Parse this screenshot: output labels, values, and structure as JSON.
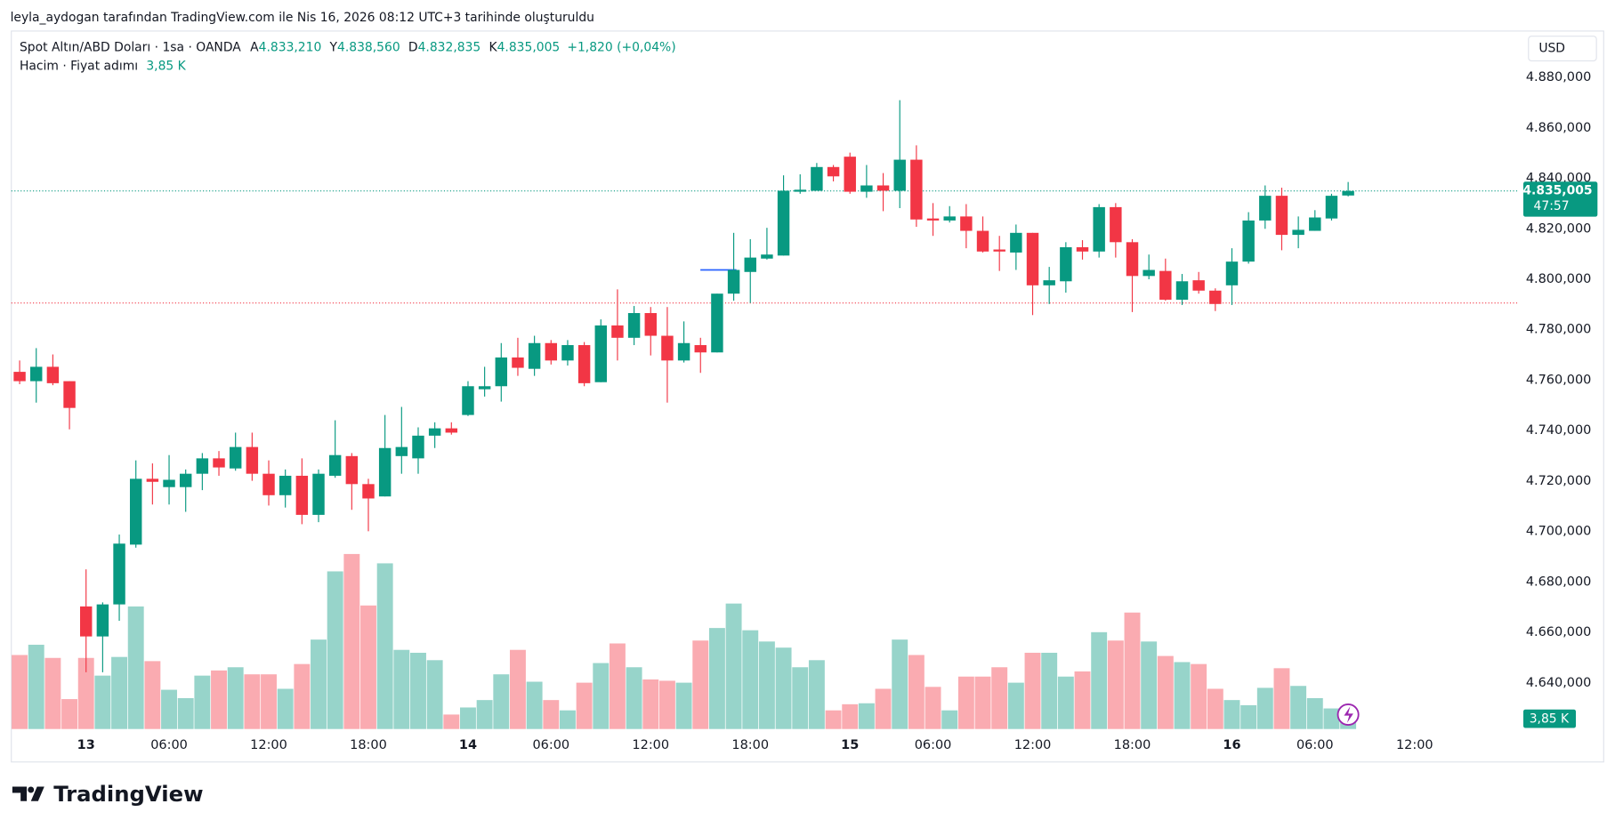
{
  "header": "leyla_aydogan tarafından TradingView.com ile Nis 16, 2026 08:12 UTC+3 tarihinde oluşturuldu",
  "footer": "TradingView",
  "chart_data": {
    "type": "candlestick",
    "currency": "USD",
    "up_color": "#089981",
    "down_color": "#f23645",
    "grid": false,
    "series": [
      {
        "name": "Spot Altın/ABD Doları · 1sa · OANDA",
        "ohlc_labels": [
          {
            "key": "A",
            "value": "4.833,210"
          },
          {
            "key": "Y",
            "value": "4.838,560"
          },
          {
            "key": "D",
            "value": "4.832,835"
          },
          {
            "key": "K",
            "value": "4.835,005"
          }
        ],
        "change_label": "+1,820 (+0,04%)",
        "countdown": "47:57",
        "open": [
          4763.3,
          4759.6,
          4765.3,
          4759.6,
          4670.3,
          4658.4,
          4671.1,
          4694.8,
          4720.9,
          4717.6,
          4717.6,
          4722.9,
          4729.0,
          4725.0,
          4733.5,
          4722.9,
          4714.4,
          4722.1,
          4706.6,
          4722.1,
          4729.9,
          4718.8,
          4713.9,
          4729.9,
          4729.0,
          4738.0,
          4740.9,
          4746.2,
          4756.4,
          4757.6,
          4769.0,
          4764.5,
          4774.7,
          4767.8,
          4773.9,
          4759.2,
          4781.7,
          4776.8,
          4786.6,
          4777.6,
          4767.8,
          4773.9,
          4771.0,
          4794.3,
          4802.9,
          4808.2,
          4809.4,
          4834.7,
          4835.1,
          4844.5,
          4848.6,
          4834.7,
          4837.2,
          4835.1,
          4847.4,
          4824.1,
          4823.3,
          4824.9,
          4819.2,
          4811.8,
          4810.6,
          4818.4,
          4797.6,
          4799.2,
          4812.7,
          4811.0,
          4828.6,
          4814.7,
          4801.3,
          4803.3,
          4791.9,
          4799.6,
          4795.5,
          4797.6,
          4807.0,
          4823.3,
          4833.1,
          4817.6,
          4819.2,
          4824.1,
          4833.21
        ],
        "high": [
          4767.8,
          4772.7,
          4770.2,
          4759.6,
          4685.0,
          4671.9,
          4698.8,
          4728.2,
          4727.0,
          4730.3,
          4724.6,
          4731.1,
          4731.9,
          4739.2,
          4739.2,
          4728.2,
          4724.6,
          4729.0,
          4724.6,
          4744.1,
          4731.1,
          4720.9,
          4746.2,
          4749.4,
          4741.3,
          4743.3,
          4743.3,
          4759.6,
          4765.3,
          4774.7,
          4776.8,
          4777.6,
          4775.9,
          4775.9,
          4775.1,
          4784.1,
          4796.0,
          4789.4,
          4789.0,
          4789.0,
          4783.3,
          4776.8,
          4794.3,
          4818.4,
          4815.9,
          4820.4,
          4841.2,
          4841.6,
          4846.1,
          4845.3,
          4850.2,
          4845.3,
          4842.1,
          4871.0,
          4853.1,
          4830.2,
          4829.0,
          4829.8,
          4824.9,
          4817.2,
          4821.7,
          4818.4,
          4804.9,
          4814.7,
          4815.5,
          4829.8,
          4830.2,
          4815.9,
          4809.8,
          4808.2,
          4802.1,
          4802.9,
          4796.4,
          4812.3,
          4826.6,
          4837.2,
          4836.3,
          4824.9,
          4827.4,
          4833.9,
          4838.56
        ],
        "low": [
          4758.4,
          4751.1,
          4758.0,
          4740.5,
          4644.2,
          4644.2,
          4664.6,
          4693.6,
          4710.7,
          4710.7,
          4707.8,
          4716.4,
          4722.1,
          4724.1,
          4720.1,
          4710.3,
          4709.5,
          4702.9,
          4703.7,
          4721.3,
          4708.6,
          4700.1,
          4713.9,
          4722.9,
          4722.9,
          4733.1,
          4738.4,
          4745.8,
          4753.5,
          4751.5,
          4761.7,
          4761.7,
          4766.2,
          4765.8,
          4757.6,
          4759.2,
          4767.8,
          4773.9,
          4769.8,
          4751.1,
          4767.0,
          4762.9,
          4771.0,
          4791.5,
          4790.6,
          4807.8,
          4809.4,
          4833.9,
          4835.1,
          4838.8,
          4833.9,
          4832.3,
          4827.0,
          4828.2,
          4820.8,
          4817.2,
          4822.5,
          4812.3,
          4810.6,
          4803.3,
          4803.7,
          4785.8,
          4790.2,
          4794.7,
          4807.8,
          4808.6,
          4808.6,
          4787.0,
          4800.0,
          4791.5,
          4789.8,
          4794.3,
          4787.4,
          4789.8,
          4806.2,
          4820.0,
          4811.5,
          4812.3,
          4819.2,
          4823.3,
          4832.835
        ],
        "close": [
          4759.6,
          4765.3,
          4758.8,
          4749.0,
          4658.4,
          4671.1,
          4695.2,
          4720.9,
          4719.7,
          4720.5,
          4722.9,
          4729.0,
          4725.4,
          4733.5,
          4722.9,
          4714.4,
          4722.1,
          4706.6,
          4722.9,
          4730.3,
          4718.8,
          4713.1,
          4733.1,
          4733.5,
          4738.0,
          4740.9,
          4739.2,
          4757.6,
          4757.6,
          4769.0,
          4764.9,
          4774.7,
          4767.8,
          4773.9,
          4758.8,
          4781.7,
          4776.8,
          4786.6,
          4777.6,
          4767.8,
          4774.7,
          4771.0,
          4794.3,
          4803.7,
          4808.6,
          4809.8,
          4835.1,
          4835.5,
          4844.5,
          4840.8,
          4834.7,
          4837.2,
          4835.1,
          4847.4,
          4823.7,
          4823.3,
          4824.9,
          4819.2,
          4811.0,
          4811.0,
          4818.4,
          4797.6,
          4799.6,
          4812.7,
          4811.0,
          4828.6,
          4814.7,
          4801.3,
          4803.7,
          4791.9,
          4799.2,
          4795.5,
          4790.2,
          4807.0,
          4823.3,
          4833.1,
          4817.6,
          4819.6,
          4824.5,
          4833.1,
          4835.005
        ]
      }
    ],
    "volume": {
      "name": "Hacim · Fiyat adımı",
      "values": [
        23.0,
        26.2,
        22.1,
        9.3,
        22.1,
        16.6,
        22.4,
        38.1,
        21.1,
        12.2,
        9.6,
        16.6,
        18.2,
        19.2,
        17.0,
        17.0,
        12.5,
        20.2,
        27.8,
        49.0,
        54.4,
        38.4,
        51.5,
        24.6,
        23.7,
        21.4,
        4.5,
        6.7,
        9.0,
        17.0,
        24.6,
        14.7,
        9.0,
        5.8,
        14.4,
        20.5,
        26.6,
        19.2,
        15.4,
        15.0,
        14.4,
        27.5,
        31.4,
        39.0,
        30.7,
        27.2,
        25.3,
        19.2,
        21.4,
        5.8,
        7.7,
        8.0,
        12.5,
        27.8,
        23.0,
        13.1,
        5.8,
        16.3,
        16.3,
        19.2,
        14.4,
        23.7,
        23.7,
        16.3,
        17.9,
        30.1,
        27.5,
        36.2,
        27.2,
        22.7,
        20.8,
        20.2,
        12.5,
        9.0,
        7.4,
        12.8,
        18.9,
        13.4,
        9.6,
        6.4,
        3.85
      ],
      "last_value_label": "3,85 K"
    },
    "prev_close_line": {
      "value": 4790.6,
      "color": "#f23645"
    },
    "xlim": [
      -0.5,
      90.3
    ],
    "xticks": [
      {
        "value": 4,
        "label": "13"
      },
      {
        "value": 9,
        "label": "06:00"
      },
      {
        "value": 15,
        "label": "12:00"
      },
      {
        "value": 21,
        "label": "18:00"
      },
      {
        "value": 27,
        "label": "14"
      },
      {
        "value": 32,
        "label": "06:00"
      },
      {
        "value": 38,
        "label": "12:00"
      },
      {
        "value": 44,
        "label": "18:00"
      },
      {
        "value": 50,
        "label": "15"
      },
      {
        "value": 55,
        "label": "06:00"
      },
      {
        "value": 61,
        "label": "12:00"
      },
      {
        "value": 67,
        "label": "18:00"
      },
      {
        "value": 73,
        "label": "16"
      },
      {
        "value": 78,
        "label": "06:00"
      },
      {
        "value": 84,
        "label": "12:00"
      }
    ],
    "ylim": [
      4621.7,
      4898.0
    ],
    "yticks": [
      {
        "value": 4640,
        "label": "4.640,000"
      },
      {
        "value": 4660,
        "label": "4.660,000"
      },
      {
        "value": 4680,
        "label": "4.680,000"
      },
      {
        "value": 4700,
        "label": "4.700,000"
      },
      {
        "value": 4720,
        "label": "4.720,000"
      },
      {
        "value": 4740,
        "label": "4.740,000"
      },
      {
        "value": 4760,
        "label": "4.760,000"
      },
      {
        "value": 4780,
        "label": "4.780,000"
      },
      {
        "value": 4800,
        "label": "4.800,000"
      },
      {
        "value": 4820,
        "label": "4.820,000"
      },
      {
        "value": 4840,
        "label": "4.840,000"
      },
      {
        "value": 4860,
        "label": "4.860,000"
      },
      {
        "value": 4880,
        "label": "4.880,000"
      }
    ]
  }
}
